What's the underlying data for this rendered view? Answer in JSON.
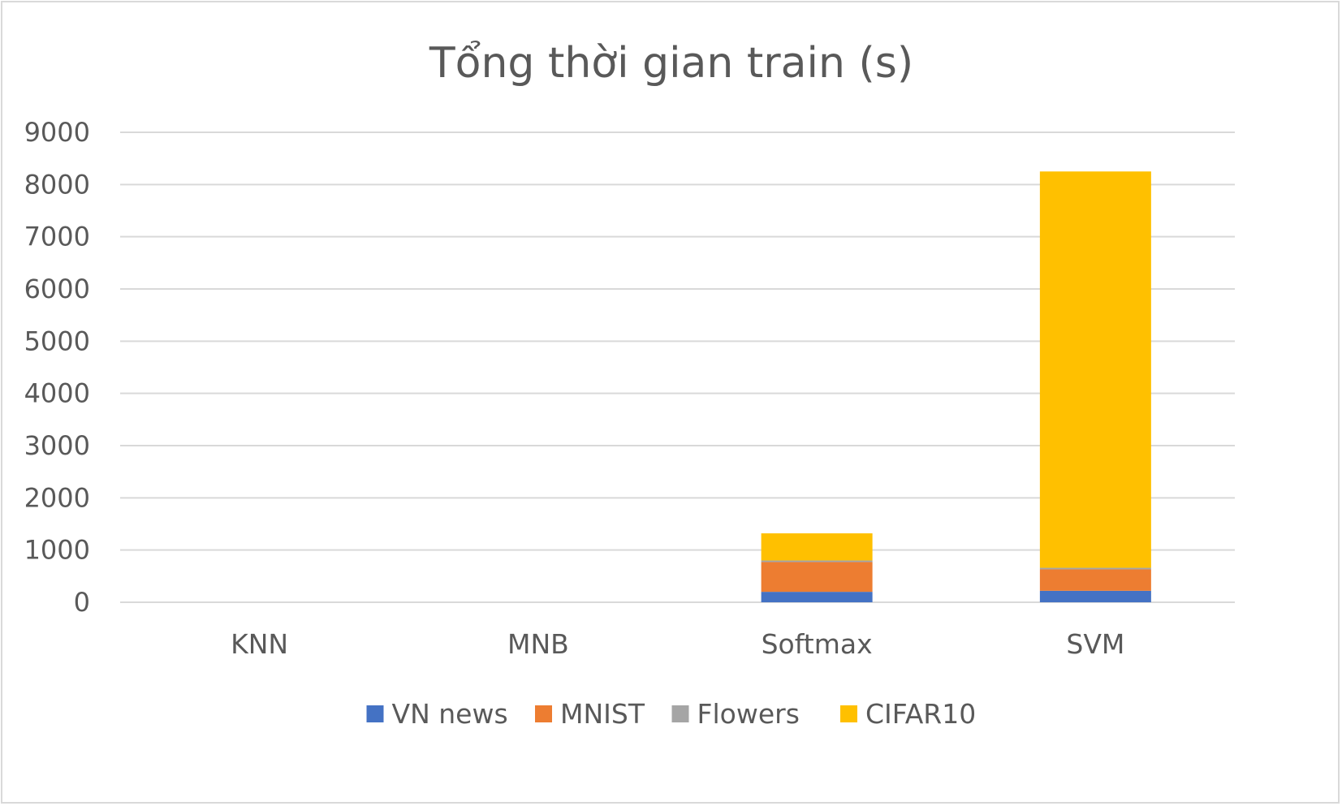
{
  "chart_data": {
    "type": "bar",
    "stacked": true,
    "title": "Tổng thời gian train (s)",
    "xlabel": "",
    "ylabel": "",
    "categories": [
      "KNN",
      "MNB",
      "Softmax",
      "SVM"
    ],
    "ylim": [
      0,
      9000
    ],
    "yticks": [
      "0",
      "1000",
      "2000",
      "3000",
      "4000",
      "5000",
      "6000",
      "7000",
      "8000",
      "9000"
    ],
    "grid": true,
    "legend_position": "bottom",
    "series": [
      {
        "name": "VN news",
        "color": "#4472C4",
        "values": [
          0,
          0,
          200,
          220
        ]
      },
      {
        "name": "MNIST",
        "color": "#ED7D31",
        "values": [
          0,
          0,
          570,
          410
        ]
      },
      {
        "name": "Flowers",
        "color": "#A5A5A5",
        "values": [
          0,
          0,
          30,
          30
        ]
      },
      {
        "name": "CIFAR10",
        "color": "#FFC000",
        "values": [
          0,
          0,
          520,
          7590
        ]
      }
    ]
  }
}
